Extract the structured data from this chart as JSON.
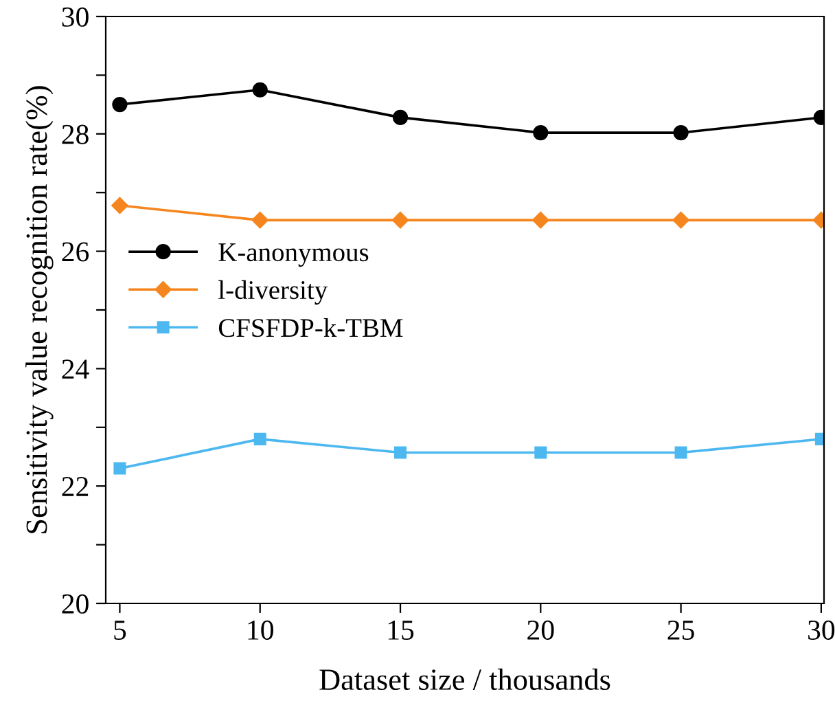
{
  "chart_data": {
    "type": "line",
    "xlabel": "Dataset size / thousands",
    "ylabel": "Sensitivity value recognition rate(%)",
    "x": [
      5,
      10,
      15,
      20,
      25,
      30
    ],
    "series": [
      {
        "name": "K-anonymous",
        "color": "#000000",
        "marker": "circle",
        "values": [
          28.5,
          28.75,
          28.28,
          28.02,
          28.02,
          28.28
        ]
      },
      {
        "name": "l-diversity",
        "color": "#f5861f",
        "marker": "diamond",
        "values": [
          26.78,
          26.53,
          26.53,
          26.53,
          26.53,
          26.53
        ]
      },
      {
        "name": "CFSFDP-k-TBM",
        "color": "#4db8f0",
        "marker": "square",
        "values": [
          22.3,
          22.8,
          22.57,
          22.57,
          22.57,
          22.8
        ]
      }
    ],
    "xlim": [
      4.5,
      30.1
    ],
    "xticks": [
      5,
      10,
      15,
      20,
      25,
      30
    ],
    "ylim": [
      20,
      30
    ],
    "yticks": [
      20,
      {
        "value": 21,
        "label": null
      },
      22,
      {
        "value": 23,
        "label": null
      },
      24,
      {
        "value": 25,
        "label": null
      },
      26,
      {
        "value": 27,
        "label": null
      },
      28,
      {
        "value": 29,
        "label": null
      },
      30
    ],
    "grid": false,
    "legend": "left",
    "line_style": "solid"
  }
}
